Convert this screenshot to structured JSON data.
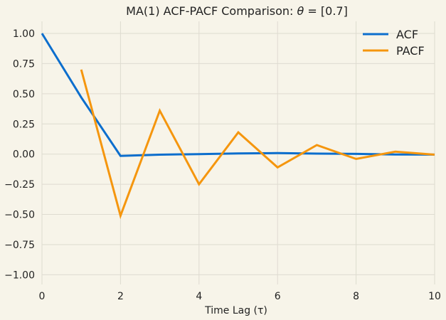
{
  "chart_data": {
    "type": "line",
    "title": {
      "prefix": "MA(1) ACF-PACF Comparison: ",
      "symbol": "θ",
      "suffix": " = [0.7]"
    },
    "xlabel": "Time Lag (τ)",
    "ylabel": "",
    "xlim": [
      0,
      10
    ],
    "ylim": [
      -1.08,
      1.1
    ],
    "x_ticks": [
      "0",
      "2",
      "4",
      "6",
      "8",
      "10"
    ],
    "y_ticks": [
      "1.00",
      "0.75",
      "0.50",
      "0.25",
      "0.00",
      "−0.25",
      "−0.50",
      "−0.75",
      "−1.00"
    ],
    "grid": true,
    "legend_position": "top-right",
    "series": [
      {
        "name": "ACF",
        "color": "#0c6ecd",
        "x": [
          0,
          1,
          2,
          3,
          4,
          5,
          6,
          7,
          8,
          9,
          10
        ],
        "values": [
          1.0,
          0.47,
          -0.015,
          -0.005,
          0.0,
          0.005,
          0.008,
          0.004,
          0.002,
          -0.003,
          -0.004
        ]
      },
      {
        "name": "PACF",
        "color": "#f5960e",
        "x": [
          1,
          2,
          3,
          4,
          5,
          6,
          7,
          8,
          9,
          10
        ],
        "values": [
          0.7,
          -0.51,
          0.36,
          -0.25,
          0.18,
          -0.11,
          0.075,
          -0.04,
          0.02,
          -0.005
        ]
      }
    ]
  }
}
